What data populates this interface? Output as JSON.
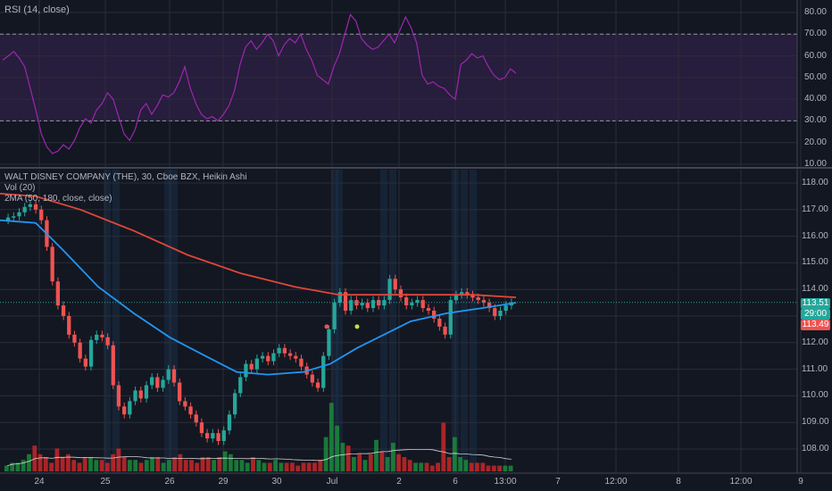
{
  "rsi_panel": {
    "legend": "RSI (14, close)",
    "y_ticks": [
      "80.00",
      "70.00",
      "60.00",
      "50.00",
      "40.00",
      "30.00",
      "20.00",
      "10.00"
    ]
  },
  "price_panel": {
    "legend_title": "WALT DISNEY COMPANY (THE), 30, Cboe BZX, Heikin Ashi",
    "legend_vol": "Vol (20)",
    "legend_ma": "2MA (50, 180, close, close)",
    "y_ticks": [
      "118.00",
      "117.00",
      "116.00",
      "115.00",
      "114.00",
      "113.00",
      "112.00",
      "111.00",
      "110.00",
      "109.00",
      "108.00"
    ]
  },
  "tags": {
    "last_price": "113.51",
    "countdown": "29:00",
    "ma_value": "113.49"
  },
  "x_axis": {
    "ticks": [
      "24",
      "25",
      "26",
      "29",
      "30",
      "Jul",
      "2",
      "6",
      "13:00",
      "7",
      "12:00",
      "8",
      "12:00",
      "9"
    ]
  },
  "colors": {
    "up": "#26a69a",
    "down": "#ef5350",
    "ma_fast": "#2196f3",
    "ma_slow": "#e0473a",
    "rsi": "#9c27b0",
    "volume_ma": "#ffffff",
    "background": "#131722"
  },
  "chart_data": [
    {
      "type": "line",
      "name": "RSI",
      "ylim": [
        10,
        80
      ],
      "bands": [
        30,
        70
      ],
      "values": [
        58,
        60,
        62,
        59,
        55,
        45,
        35,
        24,
        18,
        15,
        16,
        19,
        17,
        21,
        27,
        31,
        29,
        35,
        38,
        43,
        40,
        32,
        24,
        21,
        26,
        35,
        38,
        33,
        37,
        42,
        41,
        43,
        48,
        55,
        45,
        38,
        33,
        31,
        32,
        30,
        33,
        37,
        44,
        56,
        64,
        67,
        63,
        66,
        70,
        67,
        60,
        65,
        68,
        66,
        70,
        63,
        58,
        51,
        49,
        47,
        55,
        61,
        70,
        79,
        76,
        68,
        65,
        63,
        64,
        67,
        70,
        66,
        72,
        78,
        73,
        66,
        51,
        47,
        48,
        46,
        45,
        42,
        40,
        56,
        58,
        61,
        59,
        60,
        55,
        51,
        49,
        50,
        54,
        52
      ],
      "y_ticks": [
        80,
        70,
        60,
        50,
        40,
        30,
        20,
        10
      ]
    },
    {
      "type": "candlestick",
      "name": "DIS Heikin Ashi 30m",
      "ylim": [
        107.4,
        118.4
      ],
      "y_ticks": [
        118,
        117,
        116,
        115,
        114,
        113,
        112,
        111,
        110,
        109,
        108
      ],
      "close": [
        116.7,
        116.75,
        116.9,
        117.1,
        117.2,
        117.0,
        116.6,
        115.6,
        114.3,
        113.4,
        113.0,
        112.3,
        112.0,
        111.4,
        111.1,
        112.1,
        112.3,
        112.2,
        111.9,
        110.4,
        109.6,
        109.3,
        109.8,
        110.2,
        109.9,
        110.4,
        110.7,
        110.3,
        110.6,
        111.0,
        110.5,
        109.8,
        109.6,
        109.3,
        109.0,
        108.6,
        108.4,
        108.6,
        108.3,
        108.7,
        109.3,
        110.1,
        110.7,
        111.2,
        111.0,
        111.4,
        111.5,
        111.3,
        111.6,
        111.8,
        111.6,
        111.5,
        111.4,
        111.1,
        110.8,
        110.5,
        110.3,
        111.5,
        112.5,
        113.5,
        113.9,
        113.2,
        113.6,
        113.4,
        113.5,
        113.3,
        113.6,
        113.4,
        113.6,
        114.4,
        114.0,
        113.7,
        113.4,
        113.5,
        113.6,
        113.3,
        113.2,
        112.9,
        112.6,
        112.3,
        113.6,
        113.8,
        113.9,
        113.8,
        113.7,
        113.6,
        113.5,
        113.3,
        113.0,
        113.2,
        113.4,
        113.51
      ],
      "ma_50_start": 116.6,
      "ma_50_end": 113.0,
      "ma_180_start": 117.6,
      "ma_180_end": 113.49
    },
    {
      "type": "bar",
      "name": "Volume",
      "values": [
        2,
        3,
        3,
        4,
        6,
        9,
        6,
        5,
        3,
        8,
        5,
        6,
        4,
        3,
        5,
        5,
        4,
        4,
        3,
        6,
        8,
        5,
        4,
        4,
        3,
        4,
        5,
        5,
        3,
        4,
        5,
        6,
        4,
        4,
        3,
        5,
        5,
        4,
        5,
        7,
        6,
        4,
        4,
        3,
        5,
        4,
        3,
        3,
        4,
        3,
        3,
        3,
        2,
        3,
        3,
        3,
        4,
        12,
        24,
        16,
        10,
        9,
        5,
        6,
        4,
        6,
        11,
        7,
        5,
        10,
        6,
        5,
        4,
        3,
        3,
        3,
        2,
        3,
        17,
        5,
        12,
        5,
        4,
        3,
        3,
        3,
        2,
        2,
        2,
        2,
        2
      ]
    }
  ]
}
